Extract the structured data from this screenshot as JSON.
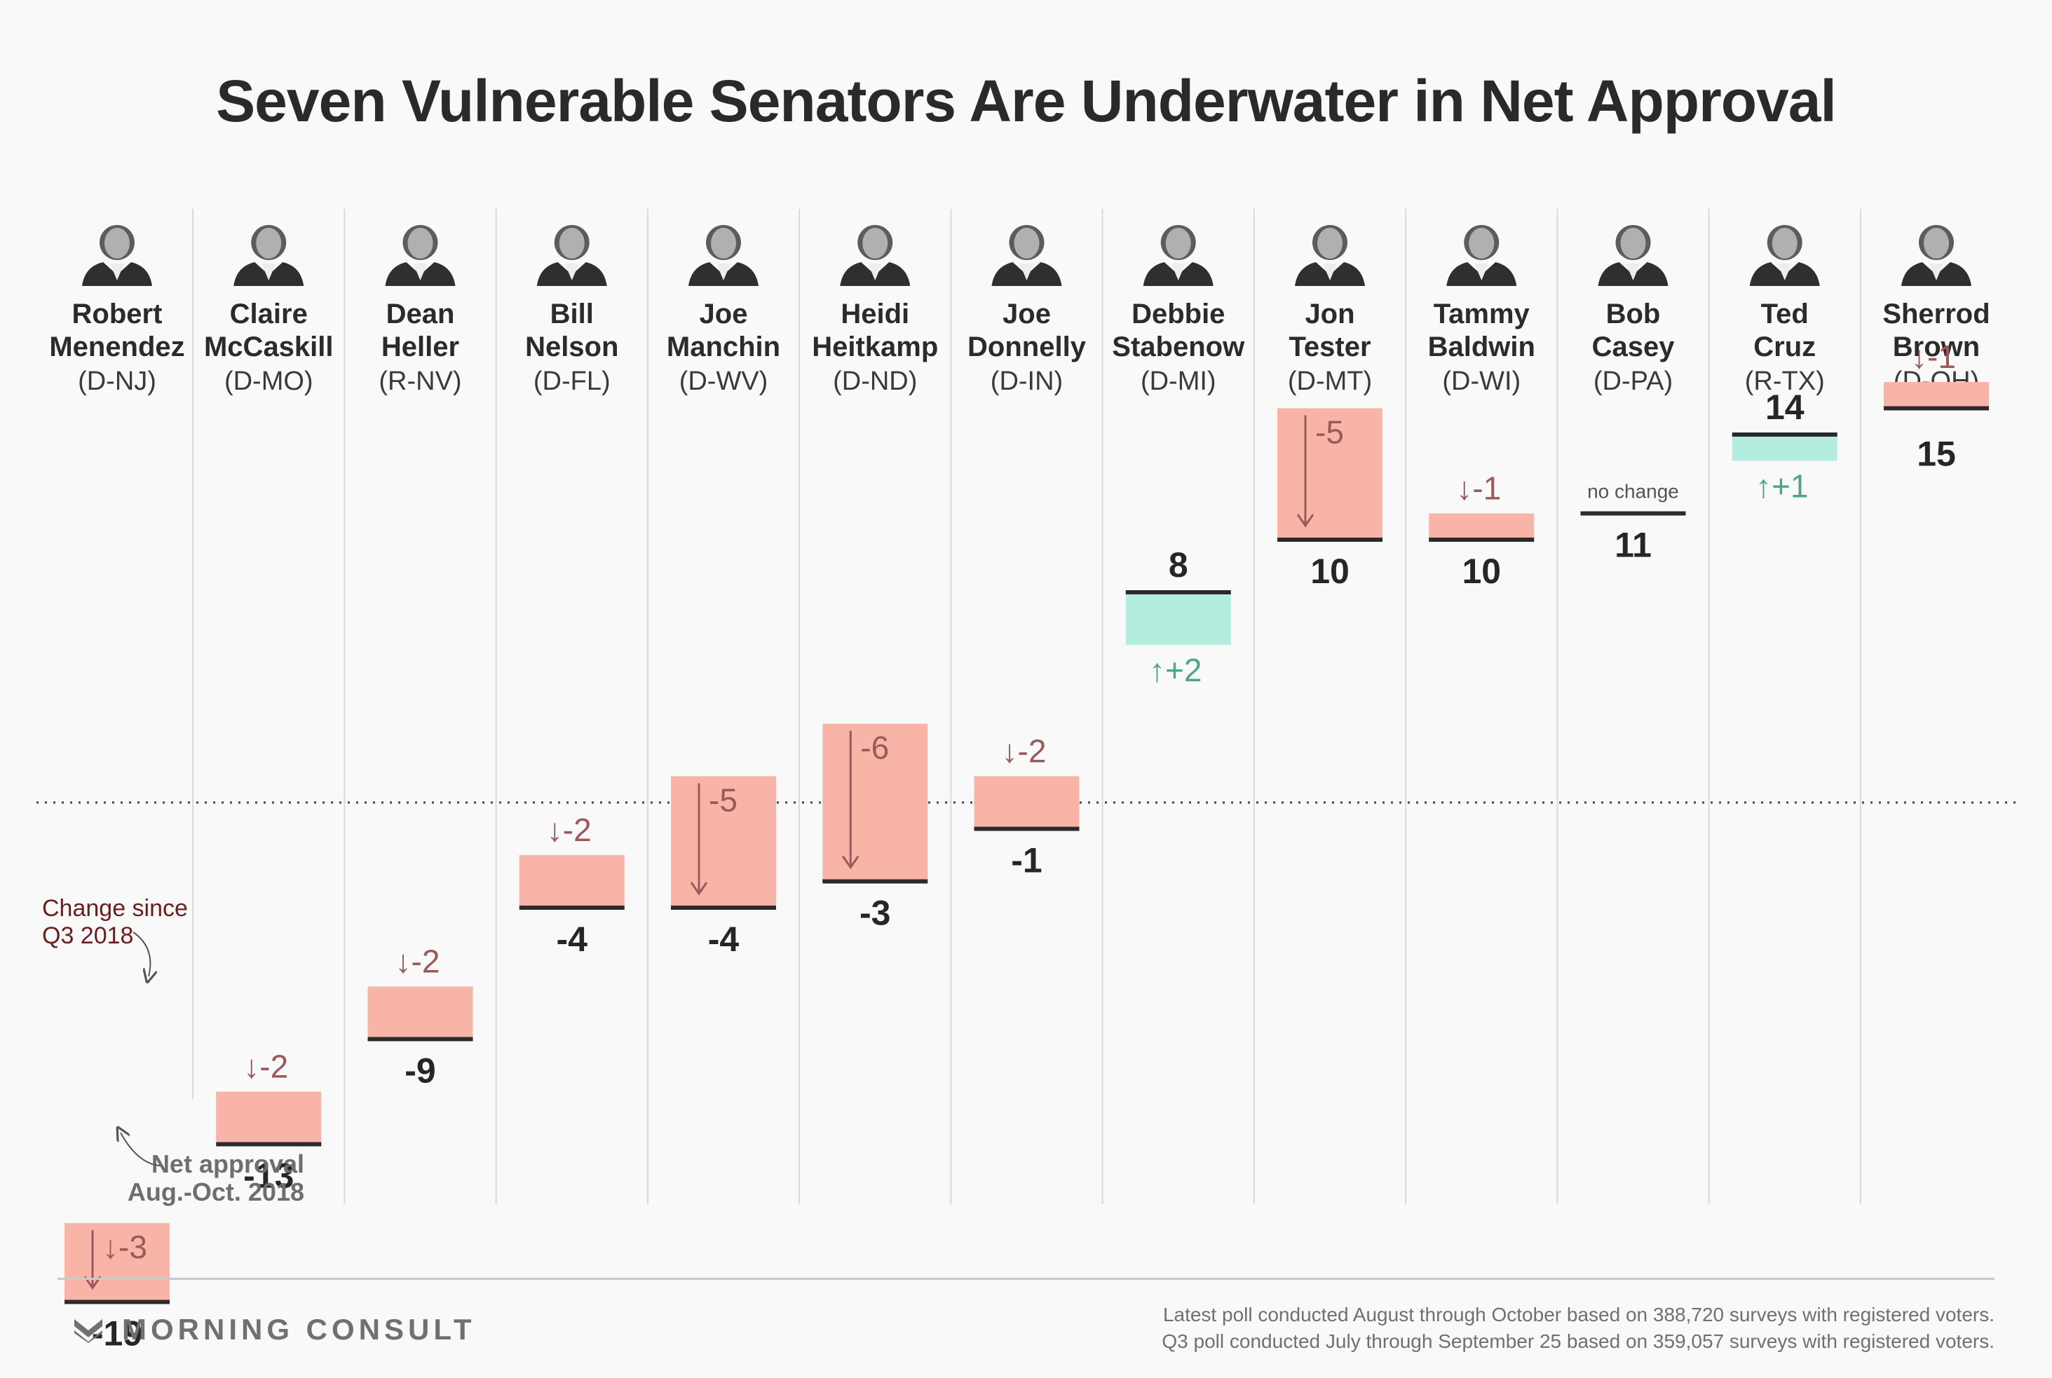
{
  "title": "Seven Vulnerable Senators Are Underwater in Net Approval",
  "colors": {
    "decline": "#f8b5a7",
    "increase": "#b4ecdf",
    "decline_text": "#9a5a5a",
    "increase_text": "#4da58a",
    "baseline": "#2b2b2b",
    "zero_line": "#444444",
    "divider": "#d9d9d9",
    "annotation_text": "#6b1e1e",
    "neutral_text": "#555555"
  },
  "annotations": {
    "change_label": [
      "Change since",
      "Q3 2018"
    ],
    "net_label": [
      "Net approval",
      "Aug.-Oct. 2018"
    ],
    "no_change": "no change"
  },
  "footer": {
    "logo_text": "MORNING CONSULT",
    "logo_icon": "morning-consult-m-icon",
    "note_1": "Latest poll conducted August through October based on 388,720 surveys with registered voters.",
    "note_2": "Q3 poll conducted July through September 25 based on 359,057 surveys with registered voters."
  },
  "chart_data": {
    "type": "bar",
    "title": "Seven Vulnerable Senators Are Underwater in Net Approval",
    "xlabel": "",
    "ylabel": "",
    "zero_line": "dotted",
    "grid": false,
    "categories": [
      "Robert Menendez",
      "Claire McCaskill",
      "Dean Heller",
      "Bill Nelson",
      "Joe Manchin",
      "Heidi Heitkamp",
      "Joe Donnelly",
      "Debbie Stabenow",
      "Jon Tester",
      "Tammy Baldwin",
      "Bob Casey",
      "Ted Cruz",
      "Sherrod Brown"
    ],
    "senators": [
      {
        "first": "Robert",
        "last": "Menendez",
        "party": "(D-NJ)",
        "net_approval": -19,
        "change": -3,
        "change_label": "↓-3"
      },
      {
        "first": "Claire",
        "last": "McCaskill",
        "party": "(D-MO)",
        "net_approval": -13,
        "change": -2,
        "change_label": "↓-2"
      },
      {
        "first": "Dean",
        "last": "Heller",
        "party": "(R-NV)",
        "net_approval": -9,
        "change": -2,
        "change_label": "↓-2"
      },
      {
        "first": "Bill",
        "last": "Nelson",
        "party": "(D-FL)",
        "net_approval": -4,
        "change": -2,
        "change_label": "↓-2"
      },
      {
        "first": "Joe",
        "last": "Manchin",
        "party": "(D-WV)",
        "net_approval": -4,
        "change": -5,
        "change_label": "-5"
      },
      {
        "first": "Heidi",
        "last": "Heitkamp",
        "party": "(D-ND)",
        "net_approval": -3,
        "change": -6,
        "change_label": "-6"
      },
      {
        "first": "Joe",
        "last": "Donnelly",
        "party": "(D-IN)",
        "net_approval": -1,
        "change": -2,
        "change_label": "↓-2"
      },
      {
        "first": "Debbie",
        "last": "Stabenow",
        "party": "(D-MI)",
        "net_approval": 8,
        "change": 2,
        "change_label": "↑+2"
      },
      {
        "first": "Jon",
        "last": "Tester",
        "party": "(D-MT)",
        "net_approval": 10,
        "change": -5,
        "change_label": "-5"
      },
      {
        "first": "Tammy",
        "last": "Baldwin",
        "party": "(D-WI)",
        "net_approval": 10,
        "change": -1,
        "change_label": "↓-1"
      },
      {
        "first": "Bob",
        "last": "Casey",
        "party": "(D-PA)",
        "net_approval": 11,
        "change": 0,
        "change_label": "no change"
      },
      {
        "first": "Ted",
        "last": "Cruz",
        "party": "(R-TX)",
        "net_approval": 14,
        "change": 1,
        "change_label": "↑+1"
      },
      {
        "first": "Sherrod",
        "last": "Brown",
        "party": "(D-OH)",
        "net_approval": 15,
        "change": -1,
        "change_label": "↓-1"
      }
    ],
    "series": [
      {
        "name": "Net approval Aug.-Oct. 2018",
        "values": [
          -19,
          -13,
          -9,
          -4,
          -4,
          -3,
          -1,
          8,
          10,
          10,
          11,
          14,
          15
        ]
      },
      {
        "name": "Change since Q3 2018",
        "values": [
          -3,
          -2,
          -2,
          -2,
          -5,
          -6,
          -2,
          2,
          -5,
          -1,
          0,
          1,
          -1
        ]
      }
    ]
  }
}
